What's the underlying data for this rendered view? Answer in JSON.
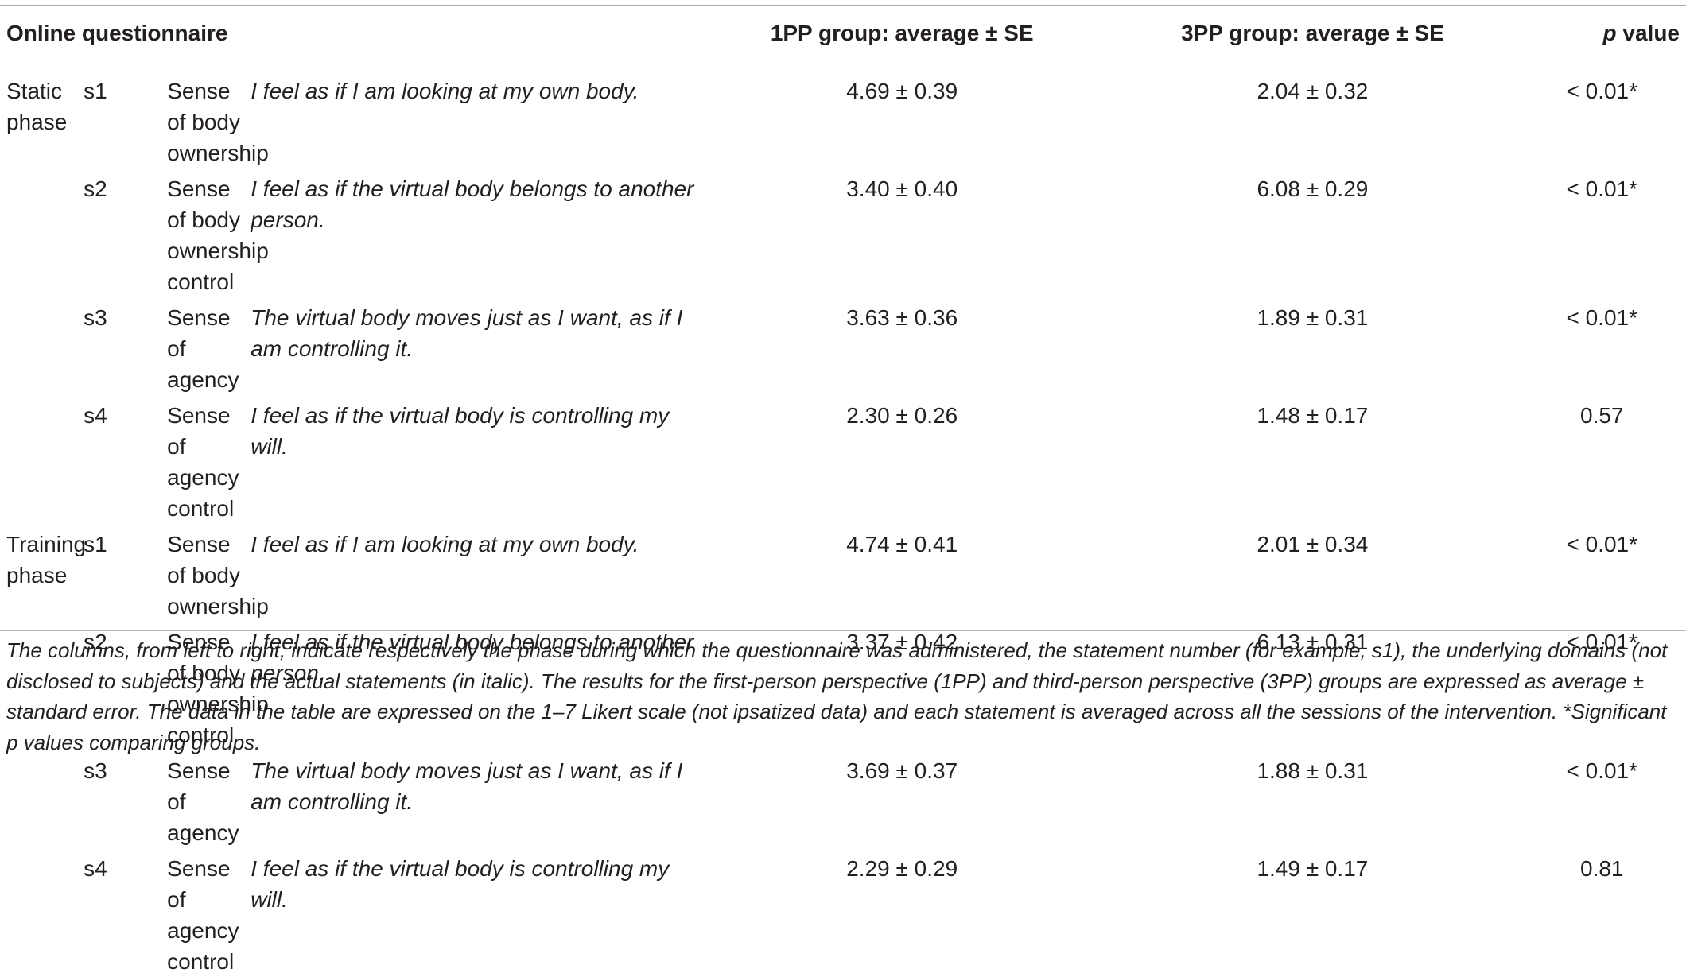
{
  "header": {
    "col_questionnaire": "Online questionnaire",
    "col_1pp": "1PP group: average ± SE",
    "col_3pp": "3PP group: average ± SE",
    "col_p_italic": "p",
    "col_p_rest": " value"
  },
  "rows": [
    {
      "phase": "Static phase",
      "num": "s1",
      "domain": "Sense of body ownership",
      "statement": "I feel as if I am looking at my own body.",
      "pp1": "4.69 ± 0.39",
      "pp3": "2.04 ± 0.32",
      "p": "< 0.01*"
    },
    {
      "phase": "",
      "num": "s2",
      "domain": "Sense of body ownership control",
      "statement": "I feel as if the virtual body belongs to another person.",
      "pp1": "3.40 ± 0.40",
      "pp3": "6.08 ± 0.29",
      "p": "< 0.01*"
    },
    {
      "phase": "",
      "num": "s3",
      "domain": "Sense of agency",
      "statement": "The virtual body moves just as I want, as if I am controlling it.",
      "pp1": "3.63 ± 0.36",
      "pp3": "1.89 ± 0.31",
      "p": "< 0.01*"
    },
    {
      "phase": "",
      "num": "s4",
      "domain": "Sense of agency control",
      "statement": "I feel as if the virtual body is controlling my will.",
      "pp1": "2.30 ± 0.26",
      "pp3": "1.48 ± 0.17",
      "p": "0.57"
    },
    {
      "phase": "Training phase",
      "num": "s1",
      "domain": "Sense of body ownership",
      "statement": "I feel as if I am looking at my own body.",
      "pp1": "4.74 ± 0.41",
      "pp3": "2.01 ± 0.34",
      "p": "< 0.01*"
    },
    {
      "phase": "",
      "num": "s2",
      "domain": "Sense of body ownership control",
      "statement": "I feel as if the virtual body belongs to another person.",
      "pp1": "3.37 ± 0.42",
      "pp3": "6.13 ± 0.31",
      "p": "< 0.01*"
    },
    {
      "phase": "",
      "num": "s3",
      "domain": "Sense of agency",
      "statement": "The virtual body moves just as I want, as if I am controlling it.",
      "pp1": "3.69 ± 0.37",
      "pp3": "1.88 ± 0.31",
      "p": "< 0.01*"
    },
    {
      "phase": "",
      "num": "s4",
      "domain": "Sense of agency control",
      "statement": "I feel as if the virtual body is controlling my will.",
      "pp1": "2.29 ± 0.29",
      "pp3": "1.49 ± 0.17",
      "p": "0.81"
    }
  ],
  "footnote": "The columns, from left to right, indicate respectively the phase during which the questionnaire was administered, the statement number (for example, s1), the underlying domains (not disclosed to subjects) and the actual statements (in italic). The results for the first-person perspective (1PP) and third-person perspective (3PP) groups are expressed as average ±  standard error. The data in the table are expressed on the 1–7 Likert scale (not ipsatized data) and each statement is averaged across all the sessions of the intervention. *Significant p values comparing groups."
}
